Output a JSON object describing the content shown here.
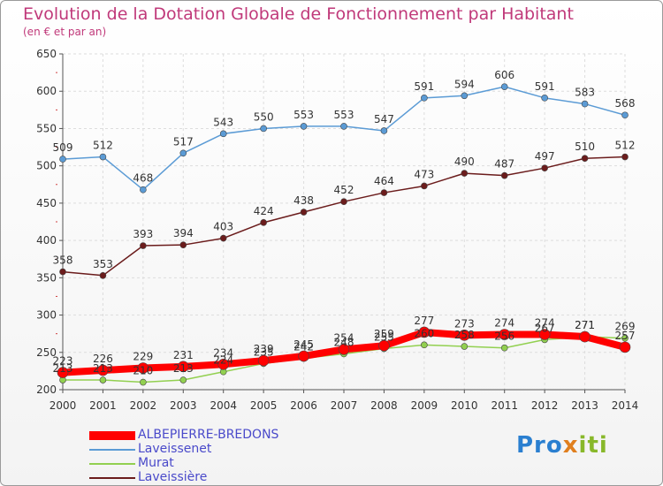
{
  "title": "Evolution de la Dotation Globale de Fonctionnement par Habitant",
  "subtitle": "(en € et par an)",
  "logo": {
    "part1": "Pro",
    "part2": "x",
    "part3": "iti"
  },
  "chart_data": {
    "type": "line",
    "x": [
      "2000",
      "2001",
      "2002",
      "2003",
      "2004",
      "2005",
      "2006",
      "2007",
      "2008",
      "2009",
      "2010",
      "2011",
      "2012",
      "2013",
      "2014"
    ],
    "ylim": [
      200,
      650
    ],
    "yticks": [
      200,
      250,
      300,
      350,
      400,
      450,
      500,
      550,
      600,
      650
    ],
    "grid": true,
    "legend_position": "bottom-left",
    "series": [
      {
        "name": "ALBEPIERRE-BREDONS",
        "color": "#ff0000",
        "values": [
          223,
          226,
          229,
          231,
          234,
          239,
          245,
          254,
          259,
          277,
          273,
          274,
          274,
          271,
          257
        ]
      },
      {
        "name": "Laveissenet",
        "color": "#5b9bd5",
        "values": [
          509,
          512,
          468,
          517,
          543,
          550,
          553,
          553,
          547,
          591,
          594,
          606,
          591,
          583,
          568
        ]
      },
      {
        "name": "Murat",
        "color": "#92d050",
        "values": [
          213,
          213,
          210,
          213,
          224,
          235,
          242,
          248,
          255,
          260,
          258,
          256,
          267,
          271,
          269
        ]
      },
      {
        "name": "Laveissière",
        "color": "#6b1c1c",
        "values": [
          358,
          353,
          393,
          394,
          403,
          424,
          438,
          452,
          464,
          473,
          490,
          487,
          497,
          510,
          512
        ]
      }
    ]
  }
}
